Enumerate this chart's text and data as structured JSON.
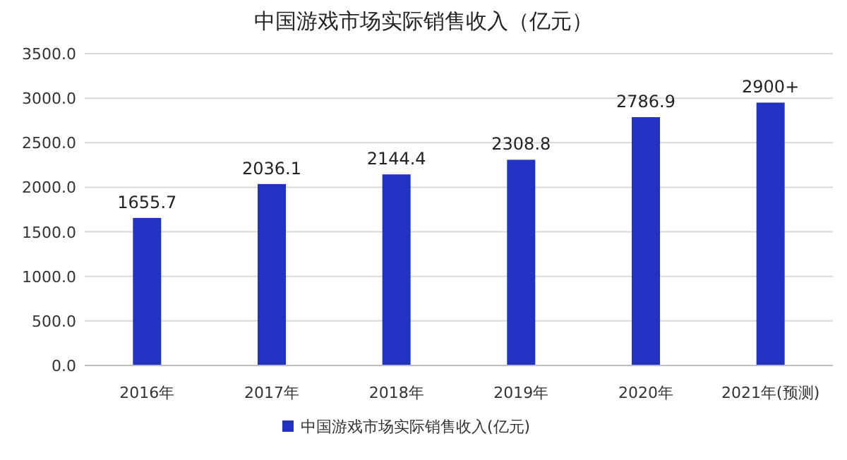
{
  "chart_data": {
    "type": "bar",
    "title": "中国游戏市场实际销售收入（亿元）",
    "categories": [
      "2016年",
      "2017年",
      "2018年",
      "2019年",
      "2020年",
      "2021年(预测)"
    ],
    "series": [
      {
        "name": "中国游戏市场实际销售收入(亿元)",
        "color": "#2233c4",
        "values": [
          1655.7,
          2036.1,
          2144.4,
          2308.8,
          2786.9,
          2950
        ],
        "value_labels": [
          "1655.7",
          "2036.1",
          "2144.4",
          "2308.8",
          "2786.9",
          "2900+"
        ]
      }
    ],
    "ylim": [
      0,
      3500
    ],
    "yticks": [
      {
        "value": 0,
        "label": "0.0"
      },
      {
        "value": 500,
        "label": "500.0"
      },
      {
        "value": 1000,
        "label": "1000.0"
      },
      {
        "value": 1500,
        "label": "1500.0"
      },
      {
        "value": 2000,
        "label": "2000.0"
      },
      {
        "value": 2500,
        "label": "2500.0"
      },
      {
        "value": 3000,
        "label": "3000.0"
      },
      {
        "value": 3500,
        "label": "3500.0"
      }
    ],
    "grid": "y",
    "legend": "bottom"
  }
}
